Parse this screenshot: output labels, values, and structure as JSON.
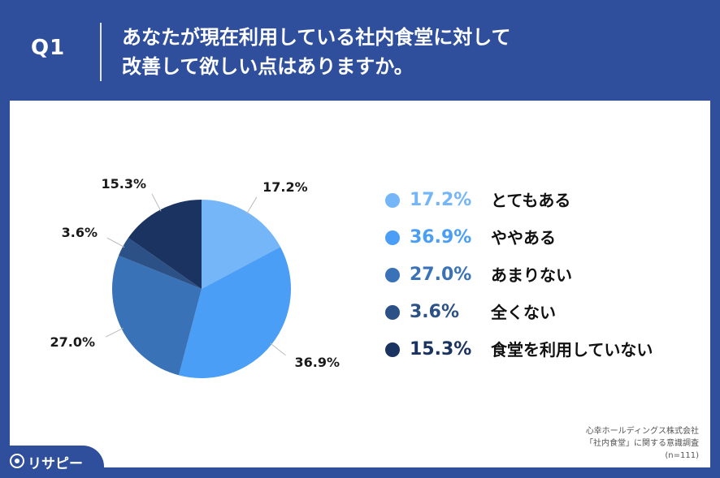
{
  "header": {
    "q_label": "Q1",
    "question_line1": "あなたが現在利用している社内食堂に対して",
    "question_line2": "改善して欲しい点はありますか。"
  },
  "chart_data": {
    "type": "pie",
    "title": "",
    "categories": [
      "とてもある",
      "ややある",
      "あまりない",
      "全くない",
      "食堂を利用していない"
    ],
    "values": [
      17.2,
      36.9,
      27.0,
      3.6,
      15.3
    ],
    "value_labels": [
      "17.2%",
      "36.9%",
      "27.0%",
      "3.6%",
      "15.3%"
    ],
    "colors": [
      "#74b6f7",
      "#4a9ef5",
      "#3a72b8",
      "#2b5186",
      "#1b3360"
    ],
    "start": "12 o'clock",
    "direction": "clockwise",
    "legend_position": "right"
  },
  "legend": {
    "items": [
      {
        "pct": "17.2%",
        "label": "とてもある"
      },
      {
        "pct": "36.9%",
        "label": "ややある"
      },
      {
        "pct": "27.0%",
        "label": "あまりない"
      },
      {
        "pct": "3.6%",
        "label": "全くない"
      },
      {
        "pct": "15.3%",
        "label": "食堂を利用していない"
      }
    ]
  },
  "source": {
    "line1": "心幸ホールディングス株式会社",
    "line2": "「社内食堂」に関する意識調査",
    "line3": "(n=111)"
  },
  "logo": {
    "text": "リサピー"
  }
}
